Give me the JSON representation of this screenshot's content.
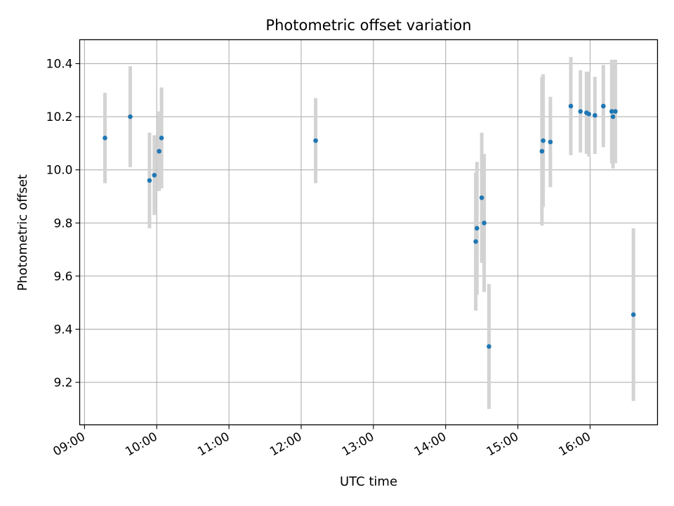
{
  "chart_data": {
    "type": "scatter",
    "title": "Photometric offset variation",
    "xlabel": "UTC time",
    "ylabel": "Photometric offset",
    "x_unit": "UTC time of day (HH:MM)",
    "xlim": [
      "08:56",
      "16:56"
    ],
    "ylim": [
      9.04,
      10.49
    ],
    "x_ticks": [
      "09:00",
      "10:00",
      "11:00",
      "12:00",
      "13:00",
      "14:00",
      "15:00",
      "16:00"
    ],
    "y_ticks": [
      "9.2",
      "9.4",
      "9.6",
      "9.8",
      "10.0",
      "10.2",
      "10.4"
    ],
    "grid": true,
    "colors": {
      "points": "#1f77b4",
      "errorbars": "#d3d3d3",
      "grid": "#b0b0b0"
    },
    "series": [
      {
        "points": [
          {
            "x": "09:17",
            "y": 10.12,
            "err": 0.17
          },
          {
            "x": "09:38",
            "y": 10.2,
            "err": 0.19
          },
          {
            "x": "09:54",
            "y": 9.96,
            "err": 0.18
          },
          {
            "x": "09:58",
            "y": 9.98,
            "err": 0.15
          },
          {
            "x": "10:02",
            "y": 10.07,
            "err": 0.15
          },
          {
            "x": "10:04",
            "y": 10.12,
            "err": 0.19
          },
          {
            "x": "12:12",
            "y": 10.11,
            "err": 0.16
          },
          {
            "x": "14:25",
            "y": 9.73,
            "err": 0.26
          },
          {
            "x": "14:26",
            "y": 9.78,
            "err": 0.25
          },
          {
            "x": "14:30",
            "y": 9.895,
            "err": 0.245
          },
          {
            "x": "14:32",
            "y": 9.8,
            "err": 0.26
          },
          {
            "x": "14:36",
            "y": 9.335,
            "err": 0.235
          },
          {
            "x": "15:20",
            "y": 10.07,
            "err": 0.28
          },
          {
            "x": "15:21",
            "y": 10.11,
            "err": 0.25
          },
          {
            "x": "15:27",
            "y": 10.105,
            "err": 0.17
          },
          {
            "x": "15:44",
            "y": 10.24,
            "err": 0.185
          },
          {
            "x": "15:52",
            "y": 10.22,
            "err": 0.155
          },
          {
            "x": "15:57",
            "y": 10.215,
            "err": 0.155
          },
          {
            "x": "15:59",
            "y": 10.21,
            "err": 0.16
          },
          {
            "x": "16:04",
            "y": 10.205,
            "err": 0.145
          },
          {
            "x": "16:11",
            "y": 10.24,
            "err": 0.155
          },
          {
            "x": "16:18",
            "y": 10.22,
            "err": 0.195
          },
          {
            "x": "16:19",
            "y": 10.2,
            "err": 0.195
          },
          {
            "x": "16:21",
            "y": 10.22,
            "err": 0.195
          },
          {
            "x": "16:36",
            "y": 9.455,
            "err": 0.325
          }
        ]
      }
    ]
  }
}
